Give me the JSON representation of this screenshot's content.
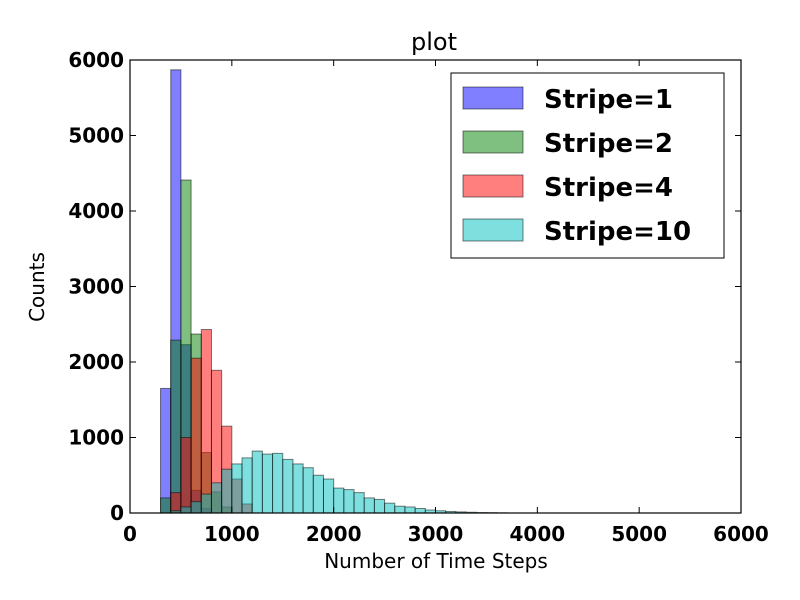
{
  "chart_data": {
    "type": "bar",
    "title": "plot",
    "xlabel": "Number of Time Steps",
    "ylabel": "Counts",
    "xlim": [
      0,
      6000
    ],
    "ylim": [
      0,
      6000
    ],
    "xticks": [
      "0",
      "1000",
      "2000",
      "3000",
      "4000",
      "5000",
      "6000"
    ],
    "yticks": [
      "0",
      "1000",
      "2000",
      "3000",
      "4000",
      "5000",
      "6000"
    ],
    "grid": false,
    "legend_position": "top-right",
    "bin_width": 100,
    "series": [
      {
        "name": "Stripe=1",
        "color": "#0000ff",
        "bins": [
          {
            "x": 300,
            "count": 1650
          },
          {
            "x": 400,
            "count": 5870
          },
          {
            "x": 500,
            "count": 2230
          },
          {
            "x": 600,
            "count": 300
          },
          {
            "x": 700,
            "count": 60
          }
        ]
      },
      {
        "name": "Stripe=2",
        "color": "#008000",
        "bins": [
          {
            "x": 300,
            "count": 200
          },
          {
            "x": 400,
            "count": 2290
          },
          {
            "x": 500,
            "count": 4410
          },
          {
            "x": 600,
            "count": 2370
          },
          {
            "x": 700,
            "count": 800
          },
          {
            "x": 800,
            "count": 280
          },
          {
            "x": 900,
            "count": 80
          }
        ]
      },
      {
        "name": "Stripe=4",
        "color": "#ff0000",
        "bins": [
          {
            "x": 400,
            "count": 270
          },
          {
            "x": 500,
            "count": 1000
          },
          {
            "x": 600,
            "count": 2050
          },
          {
            "x": 700,
            "count": 2430
          },
          {
            "x": 800,
            "count": 1890
          },
          {
            "x": 900,
            "count": 1150
          },
          {
            "x": 1000,
            "count": 450
          },
          {
            "x": 1100,
            "count": 120
          }
        ]
      },
      {
        "name": "Stripe=10",
        "color": "#00c0c0",
        "bins": [
          {
            "x": 400,
            "count": 30
          },
          {
            "x": 500,
            "count": 80
          },
          {
            "x": 600,
            "count": 150
          },
          {
            "x": 700,
            "count": 250
          },
          {
            "x": 800,
            "count": 400
          },
          {
            "x": 900,
            "count": 580
          },
          {
            "x": 1000,
            "count": 650
          },
          {
            "x": 1100,
            "count": 730
          },
          {
            "x": 1200,
            "count": 820
          },
          {
            "x": 1300,
            "count": 780
          },
          {
            "x": 1400,
            "count": 790
          },
          {
            "x": 1500,
            "count": 710
          },
          {
            "x": 1600,
            "count": 650
          },
          {
            "x": 1700,
            "count": 600
          },
          {
            "x": 1800,
            "count": 500
          },
          {
            "x": 1900,
            "count": 450
          },
          {
            "x": 2000,
            "count": 330
          },
          {
            "x": 2100,
            "count": 310
          },
          {
            "x": 2200,
            "count": 270
          },
          {
            "x": 2300,
            "count": 200
          },
          {
            "x": 2400,
            "count": 180
          },
          {
            "x": 2500,
            "count": 130
          },
          {
            "x": 2600,
            "count": 90
          },
          {
            "x": 2700,
            "count": 80
          },
          {
            "x": 2800,
            "count": 60
          },
          {
            "x": 2900,
            "count": 40
          },
          {
            "x": 3000,
            "count": 30
          },
          {
            "x": 3100,
            "count": 20
          },
          {
            "x": 3200,
            "count": 15
          },
          {
            "x": 3300,
            "count": 10
          },
          {
            "x": 3400,
            "count": 6
          },
          {
            "x": 3500,
            "count": 4
          },
          {
            "x": 3600,
            "count": 2
          }
        ]
      }
    ]
  }
}
